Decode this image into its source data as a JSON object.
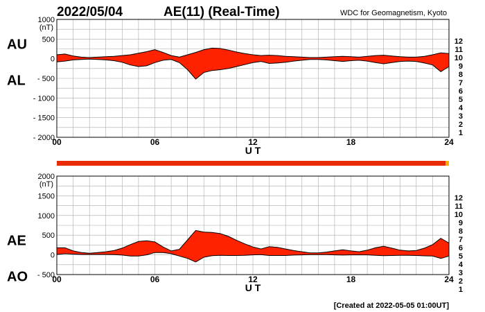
{
  "header": {
    "date": "2022/05/04",
    "title": "AE(11) (Real-Time)",
    "credit": "WDC for Geomagnetism, Kyoto"
  },
  "footer": {
    "created": "[Created at 2022-05-05 01:00UT]"
  },
  "colors": {
    "fill": "#ff2200",
    "outline": "#000000",
    "grid": "#aaaaaa",
    "bar": "#e82a05",
    "bar_end": "#ffb000"
  },
  "chart_data": [
    {
      "type": "area",
      "panel": "AU/AL",
      "side_labels": [
        "AU",
        "AL"
      ],
      "unit": "(nT)",
      "xlabel": "U T",
      "x_ticks": [
        "00",
        "06",
        "12",
        "18",
        "24"
      ],
      "xlim": [
        0,
        24
      ],
      "ylim": [
        -2000,
        1000
      ],
      "y_ticks": [
        "1000",
        "500",
        "0",
        "- 500",
        "- 1000",
        "- 1500",
        "- 2000"
      ],
      "y_tick_values": [
        1000,
        500,
        0,
        -500,
        -1000,
        -1500,
        -2000
      ],
      "grid": true,
      "station_count_scale": [
        "12",
        "11",
        "10",
        "9",
        "8",
        "7",
        "6",
        "5",
        "4",
        "3",
        "2",
        "1"
      ],
      "x": [
        0,
        0.5,
        1,
        1.5,
        2,
        2.5,
        3,
        3.5,
        4,
        4.5,
        5,
        5.5,
        6,
        6.5,
        7,
        7.5,
        8,
        8.5,
        9,
        9.5,
        10,
        10.5,
        11,
        11.5,
        12,
        12.5,
        13,
        13.5,
        14,
        14.5,
        15,
        15.5,
        16,
        16.5,
        17,
        17.5,
        18,
        18.5,
        19,
        19.5,
        20,
        20.5,
        21,
        21.5,
        22,
        22.5,
        23,
        23.5,
        24
      ],
      "series": [
        {
          "values": [
            100,
            120,
            70,
            40,
            30,
            40,
            50,
            60,
            80,
            100,
            140,
            180,
            230,
            160,
            80,
            40,
            100,
            160,
            230,
            270,
            260,
            220,
            170,
            130,
            100,
            80,
            90,
            80,
            60,
            50,
            40,
            30,
            30,
            40,
            50,
            60,
            50,
            40,
            60,
            80,
            90,
            70,
            50,
            40,
            40,
            60,
            100,
            150,
            130
          ]
        },
        {
          "values": [
            -80,
            -60,
            -30,
            -20,
            -10,
            -20,
            -30,
            -50,
            -90,
            -160,
            -200,
            -180,
            -100,
            -40,
            -20,
            -100,
            -280,
            -520,
            -350,
            -300,
            -280,
            -250,
            -200,
            -150,
            -100,
            -70,
            -120,
            -110,
            -90,
            -60,
            -40,
            -20,
            -20,
            -30,
            -50,
            -70,
            -50,
            -40,
            -60,
            -100,
            -130,
            -100,
            -70,
            -60,
            -70,
            -110,
            -160,
            -330,
            -200
          ]
        }
      ]
    },
    {
      "type": "area",
      "panel": "AE/AO",
      "side_labels": [
        "AE",
        "AO"
      ],
      "unit": "(nT)",
      "xlabel": "U T",
      "x_ticks": [
        "00",
        "06",
        "12",
        "18",
        "24"
      ],
      "xlim": [
        0,
        24
      ],
      "ylim": [
        -500,
        2000
      ],
      "y_ticks": [
        "2000",
        "1500",
        "1000",
        "500",
        "0",
        "- 500"
      ],
      "y_tick_values": [
        2000,
        1500,
        1000,
        500,
        0,
        -500
      ],
      "grid": true,
      "station_count_scale": [
        "12",
        "11",
        "10",
        "9",
        "8",
        "7",
        "6",
        "5",
        "4",
        "3",
        "2",
        "1"
      ],
      "x": [
        0,
        0.5,
        1,
        1.5,
        2,
        2.5,
        3,
        3.5,
        4,
        4.5,
        5,
        5.5,
        6,
        6.5,
        7,
        7.5,
        8,
        8.5,
        9,
        9.5,
        10,
        10.5,
        11,
        11.5,
        12,
        12.5,
        13,
        13.5,
        14,
        14.5,
        15,
        15.5,
        16,
        16.5,
        17,
        17.5,
        18,
        18.5,
        19,
        19.5,
        20,
        20.5,
        21,
        21.5,
        22,
        22.5,
        23,
        23.5,
        24
      ],
      "series": [
        {
          "values": [
            180,
            180,
            100,
            60,
            40,
            60,
            80,
            110,
            170,
            260,
            340,
            360,
            330,
            200,
            100,
            140,
            380,
            620,
            580,
            570,
            540,
            470,
            370,
            280,
            200,
            150,
            210,
            190,
            150,
            110,
            80,
            50,
            50,
            70,
            100,
            130,
            100,
            80,
            120,
            180,
            220,
            170,
            120,
            100,
            110,
            170,
            260,
            420,
            300
          ]
        },
        {
          "values": [
            10,
            30,
            20,
            10,
            10,
            10,
            10,
            5,
            -5,
            -30,
            -30,
            0,
            60,
            60,
            30,
            -30,
            -90,
            -180,
            -60,
            -20,
            -10,
            -15,
            -15,
            -10,
            0,
            5,
            -15,
            -15,
            -15,
            -5,
            0,
            5,
            5,
            5,
            0,
            -5,
            0,
            0,
            0,
            -10,
            -20,
            -15,
            -10,
            -10,
            -15,
            -25,
            -30,
            -90,
            -30
          ]
        }
      ]
    }
  ]
}
